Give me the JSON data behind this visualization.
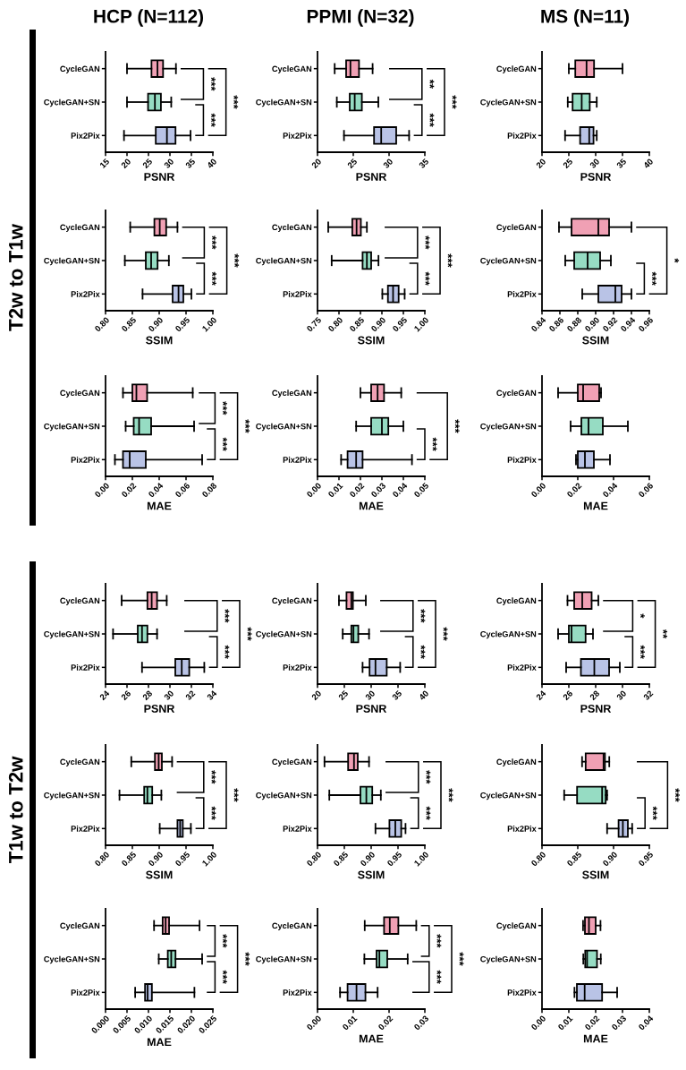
{
  "chart_data": [
    {
      "type": "box",
      "orientation": "horizontal",
      "title": "HCP (N=112)",
      "xlabel": "PSNR",
      "categories": [
        "CycleGAN",
        "CycleGAN+SN",
        "Pix2Pix"
      ],
      "colors": [
        "#f0a0b4",
        "#96dcc3",
        "#b9c3e6"
      ],
      "boxes": [
        {
          "low": 20,
          "q1": 25.7,
          "median": 27.1,
          "q3": 28.4,
          "high": 31.4
        },
        {
          "low": 20,
          "q1": 24.9,
          "median": 26.5,
          "q3": 27.9,
          "high": 30.3
        },
        {
          "low": 19.3,
          "q1": 26.7,
          "median": 29.3,
          "q3": 31.3,
          "high": 34.8
        }
      ],
      "xlim": [
        15,
        40
      ],
      "xticks": [
        15,
        20,
        25,
        30,
        35,
        40
      ],
      "annotations": [
        "***",
        "***",
        "***"
      ]
    },
    {
      "type": "box",
      "orientation": "horizontal",
      "title": "PPMI (N=32)",
      "xlabel": "PSNR",
      "categories": [
        "CycleGAN",
        "CycleGAN+SN",
        "Pix2Pix"
      ],
      "colors": [
        "#f0a0b4",
        "#96dcc3",
        "#b9c3e6"
      ],
      "boxes": [
        {
          "low": 22.4,
          "q1": 24.0,
          "median": 24.6,
          "q3": 25.8,
          "high": 27.7
        },
        {
          "low": 22.7,
          "q1": 24.5,
          "median": 25.2,
          "q3": 26.2,
          "high": 28.5
        },
        {
          "low": 23.7,
          "q1": 27.9,
          "median": 28.9,
          "q3": 31.0,
          "high": 32.8
        }
      ],
      "xlim": [
        20,
        35
      ],
      "xticks": [
        20,
        25,
        30,
        35
      ],
      "annotations": [
        "**",
        "***",
        "***"
      ]
    },
    {
      "type": "box",
      "orientation": "horizontal",
      "title": "MS (N=11)",
      "xlabel": "PSNR",
      "categories": [
        "CycleGAN",
        "CycleGAN+SN",
        "Pix2Pix"
      ],
      "colors": [
        "#f0a0b4",
        "#96dcc3",
        "#b9c3e6"
      ],
      "boxes": [
        {
          "low": 25.0,
          "q1": 26.2,
          "median": 28.3,
          "q3": 29.7,
          "high": 35.0
        },
        {
          "low": 24.8,
          "q1": 25.7,
          "median": 27.4,
          "q3": 28.9,
          "high": 30.2
        },
        {
          "low": 24.3,
          "q1": 27.1,
          "median": 28.8,
          "q3": 29.6,
          "high": 30.2
        }
      ],
      "xlim": [
        20,
        40
      ],
      "xticks": [
        20,
        25,
        30,
        35,
        40
      ]
    },
    {
      "type": "box",
      "orientation": "horizontal",
      "ylabel": "T2w to T1w",
      "xlabel": "SSIM",
      "categories": [
        "CycleGAN",
        "CycleGAN+SN",
        "Pix2Pix"
      ],
      "colors": [
        "#f0a0b4",
        "#96dcc3",
        "#b9c3e6"
      ],
      "boxes": [
        {
          "low": 0.846,
          "q1": 0.891,
          "median": 0.901,
          "q3": 0.913,
          "high": 0.934
        },
        {
          "low": 0.836,
          "q1": 0.875,
          "median": 0.885,
          "q3": 0.897,
          "high": 0.918
        },
        {
          "low": 0.869,
          "q1": 0.925,
          "median": 0.936,
          "q3": 0.945,
          "high": 0.96
        }
      ],
      "xlim": [
        0.8,
        1.0
      ],
      "xticks": [
        {
          "value": 0.8,
          "label": "0.80"
        },
        0.85,
        {
          "value": 0.9,
          "label": "0.90"
        },
        0.95,
        {
          "value": 1.0,
          "label": "1.00"
        }
      ],
      "annotations": [
        "***",
        "***",
        "***"
      ]
    },
    {
      "type": "box",
      "orientation": "horizontal",
      "xlabel": "SSIM",
      "categories": [
        "CycleGAN",
        "CycleGAN+SN",
        "Pix2Pix"
      ],
      "colors": [
        "#f0a0b4",
        "#96dcc3",
        "#b9c3e6"
      ],
      "boxes": [
        {
          "low": 0.775,
          "q1": 0.831,
          "median": 0.841,
          "q3": 0.851,
          "high": 0.865
        },
        {
          "low": 0.783,
          "q1": 0.855,
          "median": 0.865,
          "q3": 0.875,
          "high": 0.892
        },
        {
          "low": 0.901,
          "q1": 0.914,
          "median": 0.926,
          "q3": 0.939,
          "high": 0.953
        }
      ],
      "xlim": [
        0.75,
        1.0
      ],
      "xticks": [
        0.75,
        {
          "value": 0.8,
          "label": "0.80"
        },
        0.85,
        {
          "value": 0.9,
          "label": "0.90"
        },
        0.95,
        {
          "value": 1.0,
          "label": "1.00"
        }
      ],
      "annotations": [
        "***",
        "***",
        "***"
      ]
    },
    {
      "type": "box",
      "orientation": "horizontal",
      "xlabel": "SSIM",
      "categories": [
        "CycleGAN",
        "CycleGAN+SN",
        "Pix2Pix"
      ],
      "colors": [
        "#f0a0b4",
        "#96dcc3",
        "#b9c3e6"
      ],
      "boxes": [
        {
          "low": 0.859,
          "q1": 0.873,
          "median": 0.903,
          "q3": 0.915,
          "high": 0.94
        },
        {
          "low": 0.866,
          "q1": 0.876,
          "median": 0.891,
          "q3": 0.905,
          "high": 0.917
        },
        {
          "low": 0.885,
          "q1": 0.903,
          "median": 0.922,
          "q3": 0.929,
          "high": 0.94
        }
      ],
      "xlim": [
        0.84,
        0.96
      ],
      "xticks": [
        0.84,
        0.86,
        0.88,
        {
          "value": 0.9,
          "label": "0.90"
        },
        0.92,
        0.94,
        0.96
      ],
      "annotations": [
        "***",
        "*"
      ]
    },
    {
      "type": "box",
      "orientation": "horizontal",
      "xlabel": "MAE",
      "categories": [
        "CycleGAN",
        "CycleGAN+SN",
        "Pix2Pix"
      ],
      "colors": [
        "#f0a0b4",
        "#96dcc3",
        "#b9c3e6"
      ],
      "boxes": [
        {
          "low": 0.013,
          "q1": 0.02,
          "median": 0.023,
          "q3": 0.031,
          "high": 0.065
        },
        {
          "low": 0.015,
          "q1": 0.021,
          "median": 0.025,
          "q3": 0.034,
          "high": 0.066
        },
        {
          "low": 0.007,
          "q1": 0.013,
          "median": 0.018,
          "q3": 0.03,
          "high": 0.072
        }
      ],
      "xlim": [
        0,
        0.08
      ],
      "xticks": [
        {
          "value": 0,
          "label": "0.00"
        },
        0.02,
        0.04,
        0.06,
        0.08
      ],
      "annotations": [
        "***",
        "***",
        "***"
      ]
    },
    {
      "type": "box",
      "orientation": "horizontal",
      "xlabel": "MAE",
      "categories": [
        "CycleGAN",
        "CycleGAN+SN",
        "Pix2Pix"
      ],
      "colors": [
        "#f0a0b4",
        "#96dcc3",
        "#b9c3e6"
      ],
      "boxes": [
        {
          "low": 0.02,
          "q1": 0.025,
          "median": 0.028,
          "q3": 0.031,
          "high": 0.039
        },
        {
          "low": 0.018,
          "q1": 0.025,
          "median": 0.03,
          "q3": 0.033,
          "high": 0.04
        },
        {
          "low": 0.011,
          "q1": 0.014,
          "median": 0.018,
          "q3": 0.021,
          "high": 0.044
        }
      ],
      "xlim": [
        0,
        0.05
      ],
      "xticks": [
        {
          "value": 0,
          "label": "0.00"
        },
        0.01,
        0.02,
        0.03,
        0.04,
        0.05
      ],
      "annotations": [
        "***",
        "***"
      ]
    },
    {
      "type": "box",
      "orientation": "horizontal",
      "xlabel": "MAE",
      "categories": [
        "CycleGAN",
        "CycleGAN+SN",
        "Pix2Pix"
      ],
      "colors": [
        "#f0a0b4",
        "#96dcc3",
        "#b9c3e6"
      ],
      "boxes": [
        {
          "low": 0.009,
          "q1": 0.02,
          "median": 0.023,
          "q3": 0.032,
          "high": 0.033
        },
        {
          "low": 0.016,
          "q1": 0.022,
          "median": 0.026,
          "q3": 0.034,
          "high": 0.048
        },
        {
          "low": 0.019,
          "q1": 0.02,
          "median": 0.024,
          "q3": 0.029,
          "high": 0.038
        }
      ],
      "xlim": [
        0,
        0.06
      ],
      "xticks": [
        {
          "value": 0,
          "label": "0.00"
        },
        0.02,
        0.04,
        0.06
      ]
    },
    {
      "type": "box",
      "orientation": "horizontal",
      "xlabel": "PSNR",
      "categories": [
        "CycleGAN",
        "CycleGAN+SN",
        "Pix2Pix"
      ],
      "colors": [
        "#f0a0b4",
        "#96dcc3",
        "#b9c3e6"
      ],
      "boxes": [
        {
          "low": 25.5,
          "q1": 27.9,
          "median": 28.3,
          "q3": 28.8,
          "high": 29.7
        },
        {
          "low": 24.7,
          "q1": 27.0,
          "median": 27.4,
          "q3": 27.9,
          "high": 28.8
        },
        {
          "low": 27.4,
          "q1": 30.5,
          "median": 31.1,
          "q3": 31.8,
          "high": 33.2
        }
      ],
      "xlim": [
        24,
        34
      ],
      "xticks": [
        24,
        26,
        28,
        30,
        32,
        34
      ],
      "annotations": [
        "***",
        "***",
        "***"
      ]
    },
    {
      "type": "box",
      "orientation": "horizontal",
      "xlabel": "PSNR",
      "categories": [
        "CycleGAN",
        "CycleGAN+SN",
        "Pix2Pix"
      ],
      "colors": [
        "#f0a0b4",
        "#96dcc3",
        "#b9c3e6"
      ],
      "boxes": [
        {
          "low": 24.0,
          "q1": 25.4,
          "median": 26.3,
          "q3": 26.6,
          "high": 29.0
        },
        {
          "low": 24.7,
          "q1": 26.3,
          "median": 26.7,
          "q3": 27.6,
          "high": 29.6
        },
        {
          "low": 28.4,
          "q1": 29.7,
          "median": 30.8,
          "q3": 32.9,
          "high": 35.4
        }
      ],
      "xlim": [
        20,
        40
      ],
      "xticks": [
        20,
        25,
        30,
        35,
        40
      ],
      "annotations": [
        "***",
        "***",
        "***"
      ]
    },
    {
      "type": "box",
      "orientation": "horizontal",
      "xlabel": "PSNR",
      "categories": [
        "CycleGAN",
        "CycleGAN+SN",
        "Pix2Pix"
      ],
      "colors": [
        "#f0a0b4",
        "#96dcc3",
        "#b9c3e6"
      ],
      "boxes": [
        {
          "low": 25.9,
          "q1": 26.4,
          "median": 27.0,
          "q3": 27.7,
          "high": 28.2
        },
        {
          "low": 25.2,
          "q1": 26.0,
          "median": 26.2,
          "q3": 27.25,
          "high": 27.8
        },
        {
          "low": 25.8,
          "q1": 26.9,
          "median": 27.9,
          "q3": 29.0,
          "high": 29.8
        }
      ],
      "xlim": [
        24,
        32
      ],
      "xticks": [
        24,
        26,
        28,
        30,
        32
      ],
      "annotations": [
        "*",
        "***",
        "**"
      ]
    },
    {
      "type": "box",
      "orientation": "horizontal",
      "ylabel": "T1w to T2w",
      "xlabel": "SSIM",
      "categories": [
        "CycleGAN",
        "CycleGAN+SN",
        "Pix2Pix"
      ],
      "colors": [
        "#f0a0b4",
        "#96dcc3",
        "#b9c3e6"
      ],
      "boxes": [
        {
          "low": 0.848,
          "q1": 0.892,
          "median": 0.899,
          "q3": 0.905,
          "high": 0.924
        },
        {
          "low": 0.826,
          "q1": 0.872,
          "median": 0.878,
          "q3": 0.887,
          "high": 0.904
        },
        {
          "low": 0.901,
          "q1": 0.934,
          "median": 0.939,
          "q3": 0.944,
          "high": 0.959
        }
      ],
      "xlim": [
        0.8,
        1.0
      ],
      "xticks": [
        {
          "value": 0.8,
          "label": "0.80"
        },
        0.85,
        {
          "value": 0.9,
          "label": "0.90"
        },
        0.95,
        {
          "value": 1.0,
          "label": "1.00"
        }
      ],
      "annotations": [
        "***",
        "***",
        "***"
      ]
    },
    {
      "type": "box",
      "orientation": "horizontal",
      "xlabel": "SSIM",
      "categories": [
        "CycleGAN",
        "CycleGAN+SN",
        "Pix2Pix"
      ],
      "colors": [
        "#f0a0b4",
        "#96dcc3",
        "#b9c3e6"
      ],
      "boxes": [
        {
          "low": 0.813,
          "q1": 0.857,
          "median": 0.868,
          "q3": 0.875,
          "high": 0.896
        },
        {
          "low": 0.822,
          "q1": 0.88,
          "median": 0.891,
          "q3": 0.902,
          "high": 0.918
        },
        {
          "low": 0.908,
          "q1": 0.934,
          "median": 0.945,
          "q3": 0.956,
          "high": 0.964
        }
      ],
      "xlim": [
        0.8,
        1.0
      ],
      "xticks": [
        {
          "value": 0.8,
          "label": "0.80"
        },
        0.85,
        {
          "value": 0.9,
          "label": "0.90"
        },
        0.95,
        {
          "value": 1.0,
          "label": "1.00"
        }
      ],
      "annotations": [
        "***",
        "***",
        "***"
      ]
    },
    {
      "type": "box",
      "orientation": "horizontal",
      "xlabel": "SSIM",
      "categories": [
        "CycleGAN",
        "CycleGAN+SN",
        "Pix2Pix"
      ],
      "colors": [
        "#f0a0b4",
        "#96dcc3",
        "#b9c3e6"
      ],
      "boxes": [
        {
          "low": 0.856,
          "q1": 0.861,
          "median": 0.886,
          "q3": 0.888,
          "high": 0.894
        },
        {
          "low": 0.831,
          "q1": 0.849,
          "median": 0.884,
          "q3": 0.889,
          "high": 0.891
        },
        {
          "low": 0.891,
          "q1": 0.907,
          "median": 0.913,
          "q3": 0.92,
          "high": 0.926
        }
      ],
      "xlim": [
        0.8,
        0.95
      ],
      "xticks": [
        {
          "value": 0.8,
          "label": "0.80"
        },
        0.85,
        {
          "value": 0.9,
          "label": "0.90"
        },
        0.95
      ],
      "annotations": [
        "***",
        "***"
      ]
    },
    {
      "type": "box",
      "orientation": "horizontal",
      "xlabel": "MAE",
      "categories": [
        "CycleGAN",
        "CycleGAN+SN",
        "Pix2Pix"
      ],
      "colors": [
        "#f0a0b4",
        "#96dcc3",
        "#b9c3e6"
      ],
      "boxes": [
        {
          "low": 0.0113,
          "q1": 0.0133,
          "median": 0.014,
          "q3": 0.0148,
          "high": 0.0219
        },
        {
          "low": 0.0124,
          "q1": 0.0145,
          "median": 0.0153,
          "q3": 0.0163,
          "high": 0.0225
        },
        {
          "low": 0.0069,
          "q1": 0.0092,
          "median": 0.0098,
          "q3": 0.0108,
          "high": 0.0207
        }
      ],
      "xlim": [
        0,
        0.025
      ],
      "xticks": [
        {
          "value": 0,
          "label": "0.000"
        },
        0.005,
        {
          "value": 0.01,
          "label": "0.010"
        },
        0.015,
        {
          "value": 0.02,
          "label": "0.020"
        },
        0.025
      ],
      "annotations": [
        "***",
        "***",
        "***"
      ]
    },
    {
      "type": "box",
      "orientation": "horizontal",
      "xlabel": "MAE",
      "categories": [
        "CycleGAN",
        "CycleGAN+SN",
        "Pix2Pix"
      ],
      "colors": [
        "#f0a0b4",
        "#96dcc3",
        "#b9c3e6"
      ],
      "boxes": [
        {
          "low": 0.0132,
          "q1": 0.0186,
          "median": 0.0202,
          "q3": 0.0226,
          "high": 0.0276
        },
        {
          "low": 0.0131,
          "q1": 0.0165,
          "median": 0.0173,
          "q3": 0.0195,
          "high": 0.0252
        },
        {
          "low": 0.0063,
          "q1": 0.0084,
          "median": 0.0109,
          "q3": 0.0134,
          "high": 0.0168
        }
      ],
      "xlim": [
        0,
        0.03
      ],
      "xticks": [
        {
          "value": 0,
          "label": "0.00"
        },
        0.01,
        0.02,
        0.03
      ],
      "annotations": [
        "***",
        "***",
        "***"
      ]
    },
    {
      "type": "box",
      "orientation": "horizontal",
      "xlabel": "MAE",
      "categories": [
        "CycleGAN",
        "CycleGAN+SN",
        "Pix2Pix"
      ],
      "colors": [
        "#f0a0b4",
        "#96dcc3",
        "#b9c3e6"
      ],
      "boxes": [
        {
          "low": 0.0153,
          "q1": 0.016,
          "median": 0.0175,
          "q3": 0.02,
          "high": 0.0218
        },
        {
          "low": 0.0154,
          "q1": 0.0161,
          "median": 0.0168,
          "q3": 0.0205,
          "high": 0.0219
        },
        {
          "low": 0.0121,
          "q1": 0.013,
          "median": 0.0159,
          "q3": 0.0224,
          "high": 0.028
        }
      ],
      "xlim": [
        0,
        0.04
      ],
      "xticks": [
        {
          "value": 0,
          "label": "0.00"
        },
        0.01,
        0.02,
        0.03,
        0.04
      ]
    }
  ]
}
